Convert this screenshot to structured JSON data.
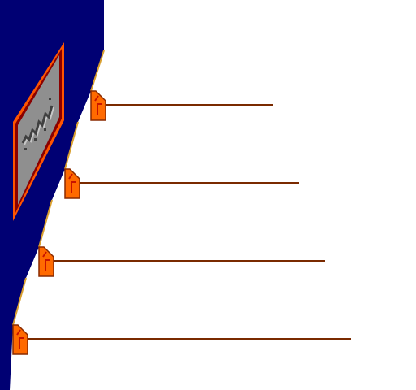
{
  "scene": {
    "background_color": "#ffffff",
    "wall_color": "#000073",
    "edge_color": "#d9a030",
    "ledge_cap_color": "#ff6a00",
    "ledge_outline_color": "#8a2a00",
    "rail_color": "#7a2a00",
    "plaque": {
      "frame_outer_color": "#ff5500",
      "frame_inner_color": "#8a0000",
      "panel_color": "#8f8f8f",
      "glyph_color": "#404040",
      "glyph_shadow_color": "#c8c8c8"
    },
    "ledge_count": 4
  }
}
